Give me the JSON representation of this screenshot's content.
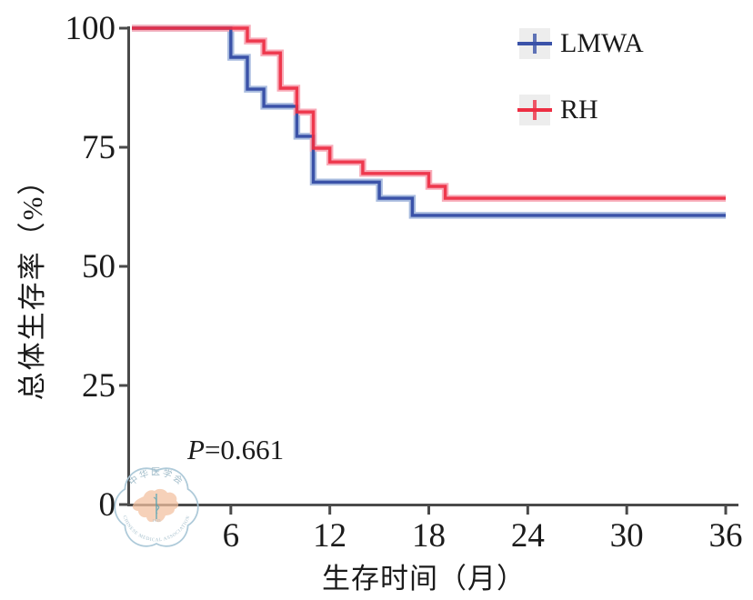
{
  "chart_data": {
    "type": "line",
    "subtype": "kaplan-meier-step",
    "title": "",
    "xlabel": "生存时间（月）",
    "ylabel": "总体生存率（%）",
    "xlim": [
      0,
      36
    ],
    "ylim": [
      0,
      100
    ],
    "x_ticks": [
      6,
      12,
      18,
      24,
      30,
      36
    ],
    "y_ticks": [
      0,
      25,
      50,
      75,
      100
    ],
    "grid": false,
    "legend_position": "top-right",
    "series": [
      {
        "name": "LMWA",
        "color": "#3a52a8",
        "halo_color": "#a9bcdf",
        "steps": [
          [
            0,
            100
          ],
          [
            6,
            93.9
          ],
          [
            7,
            87.2
          ],
          [
            8,
            83.6
          ],
          [
            10,
            77.3
          ],
          [
            11,
            67.7
          ],
          [
            15,
            64.3
          ],
          [
            17,
            60.7
          ],
          [
            36,
            60.7
          ]
        ]
      },
      {
        "name": "RH",
        "color": "#ed2e43",
        "halo_color": "#f8abb8",
        "steps": [
          [
            0,
            100
          ],
          [
            7,
            97.3
          ],
          [
            8,
            94.8
          ],
          [
            9,
            87.4
          ],
          [
            10,
            82.4
          ],
          [
            11,
            74.8
          ],
          [
            12,
            71.9
          ],
          [
            14,
            69.5
          ],
          [
            18,
            66.8
          ],
          [
            19,
            64.3
          ],
          [
            36,
            64.3
          ]
        ]
      }
    ],
    "annotation": {
      "p_symbol": "P",
      "p_value_text": "=0.661"
    }
  },
  "axes_style": {
    "axis_color": "#4a4a4a",
    "text_color": "#1b1b1b",
    "legend_box_bg": "#ededed"
  },
  "watermark": {
    "top_text": "中华医学会",
    "bottom_text": "CHINESE MEDICAL ASSOCIATION",
    "year_text": "1915",
    "ring_color": "#a8c6d6",
    "map_color": "#f3c0a0",
    "staff_color": "#6fa8b0",
    "text_color": "#9bb8c6"
  }
}
